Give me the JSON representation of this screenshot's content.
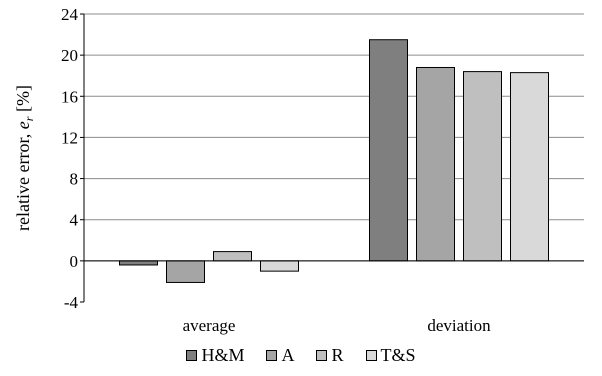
{
  "chart_data": {
    "type": "bar",
    "categories": [
      "average",
      "deviation"
    ],
    "series": [
      {
        "name": "H&M",
        "values": [
          -0.4,
          21.5
        ],
        "color": "#7f7f7f"
      },
      {
        "name": "A",
        "values": [
          -2.1,
          18.8
        ],
        "color": "#a5a5a5"
      },
      {
        "name": "R",
        "values": [
          0.9,
          18.4
        ],
        "color": "#bfbfbf"
      },
      {
        "name": "T&S",
        "values": [
          -1.0,
          18.3
        ],
        "color": "#d9d9d9"
      }
    ],
    "ylabel_main": "relative error, ",
    "ylabel_var": "e",
    "ylabel_sub": "r",
    "ylabel_unit": " [%]",
    "ylim": [
      -4,
      24
    ],
    "yticks": [
      -4,
      0,
      4,
      8,
      12,
      16,
      20,
      24
    ],
    "ytick_labels": [
      "-4",
      "0",
      "4",
      "8",
      "12",
      "16",
      "20",
      "24"
    ],
    "grid": true,
    "legend_position": "bottom"
  }
}
